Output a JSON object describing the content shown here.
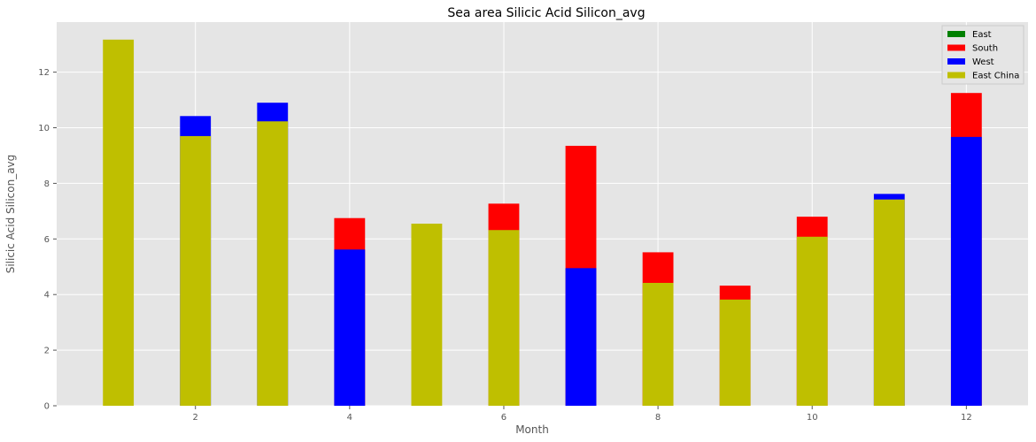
{
  "chart_data": {
    "type": "bar",
    "stacking": "overlaid",
    "title": "Sea area Silicic Acid Silicon_avg",
    "xlabel": "Month",
    "ylabel": "Silicic Acid Silicon_avg",
    "x": [
      1,
      2,
      3,
      4,
      5,
      6,
      7,
      8,
      9,
      10,
      11,
      12
    ],
    "xlim": [
      0.2,
      12.8
    ],
    "ylim": [
      0,
      13.8
    ],
    "xticks": [
      2,
      4,
      6,
      8,
      10,
      12
    ],
    "yticks": [
      0,
      2,
      4,
      6,
      8,
      10,
      12
    ],
    "grid": true,
    "legend_position": "top-right",
    "series": [
      {
        "name": "East",
        "color": "#008000",
        "values": [
          null,
          null,
          null,
          null,
          null,
          null,
          null,
          null,
          null,
          null,
          null,
          null
        ]
      },
      {
        "name": "South",
        "color": "#ff0000",
        "values": [
          null,
          null,
          null,
          6.75,
          null,
          7.27,
          9.35,
          5.52,
          4.32,
          6.8,
          null,
          11.25
        ]
      },
      {
        "name": "West",
        "color": "#0000ff",
        "values": [
          null,
          10.42,
          10.9,
          5.62,
          null,
          null,
          4.95,
          null,
          null,
          null,
          7.62,
          9.67
        ]
      },
      {
        "name": "East China",
        "color": "#bfbf00",
        "values": [
          13.17,
          9.7,
          10.23,
          null,
          6.55,
          6.32,
          null,
          4.42,
          3.82,
          6.08,
          7.42,
          null
        ]
      }
    ]
  }
}
